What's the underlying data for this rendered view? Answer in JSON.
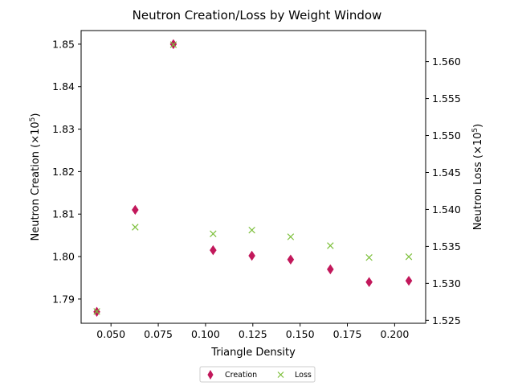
{
  "chart_data": {
    "type": "scatter",
    "title": "Neutron Creation/Loss by Weight Window",
    "xlabel": "Triangle Density",
    "xlim": [
      0.0342,
      0.2164
    ],
    "x_ticks": [
      "0.050",
      "0.075",
      "0.100",
      "0.125",
      "0.150",
      "0.175",
      "0.200"
    ],
    "x_tick_values": [
      0.05,
      0.075,
      0.1,
      0.125,
      0.15,
      0.175,
      0.2
    ],
    "y_left": {
      "label_base": "Neutron Creation (×10",
      "label_exp": "5",
      "label_close": ")",
      "lim": [
        1.7843,
        1.8532
      ],
      "ticks": [
        "1.79",
        "1.80",
        "1.81",
        "1.82",
        "1.83",
        "1.84",
        "1.85"
      ],
      "tick_values": [
        1.79,
        1.8,
        1.81,
        1.82,
        1.83,
        1.84,
        1.85
      ]
    },
    "y_right": {
      "label_base": "Neutron Loss (×10",
      "label_exp": "5",
      "label_close": ")",
      "lim": [
        1.5246,
        1.5642
      ],
      "ticks": [
        "1.525",
        "1.530",
        "1.535",
        "1.540",
        "1.545",
        "1.550",
        "1.555",
        "1.560"
      ],
      "tick_values": [
        1.525,
        1.53,
        1.535,
        1.54,
        1.545,
        1.55,
        1.555,
        1.56
      ]
    },
    "series": [
      {
        "name": "Creation",
        "axis": "left",
        "marker": "diamond",
        "color": "#c2185b",
        "x": [
          0.0425,
          0.0628,
          0.083,
          0.104,
          0.1245,
          0.145,
          0.166,
          0.1865,
          0.2075
        ],
        "y": [
          1.787,
          1.811,
          1.85,
          1.8015,
          1.8002,
          1.7993,
          1.797,
          1.794,
          1.7943
        ]
      },
      {
        "name": "Loss",
        "axis": "right",
        "marker": "x",
        "color": "#7cbf3a",
        "x": [
          0.0425,
          0.0628,
          0.083,
          0.104,
          0.1245,
          0.145,
          0.166,
          0.1865,
          0.2075
        ],
        "y": [
          1.5262,
          1.5376,
          1.5623,
          1.5367,
          1.5372,
          1.5363,
          1.5351,
          1.5335,
          1.5336
        ]
      }
    ],
    "legend_position": "bottom-center"
  }
}
